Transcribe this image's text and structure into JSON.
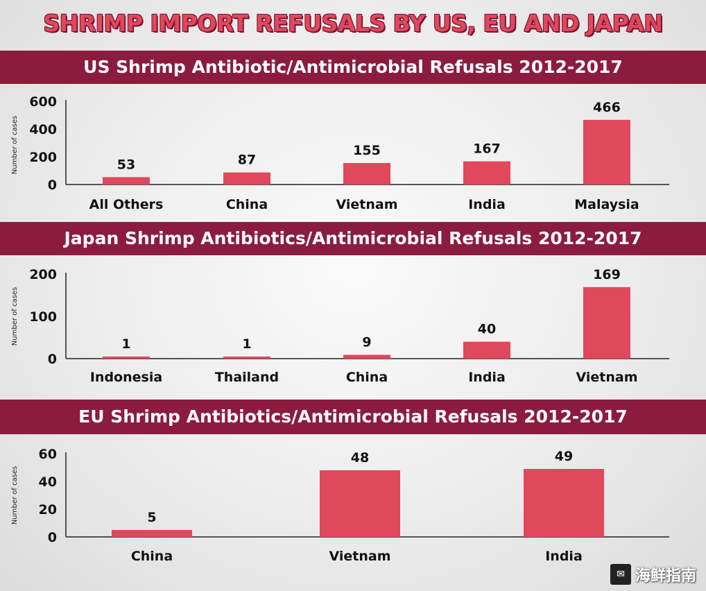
{
  "title": "SHRIMP IMPORT REFUSALS BY US, EU AND JAPAN",
  "ylabel": "Number of cases",
  "watermark": {
    "text": "海鲜指南",
    "logo_icon": "wechat-icon"
  },
  "colors": {
    "bar": "#e0485c",
    "band": "#8c1c3e",
    "title": "#e0485c"
  },
  "chart_data": [
    {
      "type": "bar",
      "title": "US Shrimp Antibiotic/Antimicrobial Refusals 2012-2017",
      "ylabel": "Number of cases",
      "categories": [
        "All Others",
        "China",
        "Vietnam",
        "India",
        "Malaysia"
      ],
      "values": [
        53,
        87,
        155,
        167,
        466
      ],
      "ylim": [
        0,
        600
      ],
      "yticks": [
        0,
        200,
        400,
        600
      ]
    },
    {
      "type": "bar",
      "title": "Japan Shrimp Antibiotics/Antimicrobial Refusals 2012-2017",
      "ylabel": "Number of cases",
      "categories": [
        "Indonesia",
        "Thailand",
        "China",
        "India",
        "Vietnam"
      ],
      "values": [
        1,
        1,
        9,
        40,
        169
      ],
      "ylim": [
        0,
        200
      ],
      "yticks": [
        0,
        100,
        200
      ]
    },
    {
      "type": "bar",
      "title": "EU Shrimp Antibiotics/Antimicrobial Refusals 2012-2017",
      "ylabel": "Number of cases",
      "categories": [
        "China",
        "Vietnam",
        "India"
      ],
      "values": [
        5,
        48,
        49
      ],
      "ylim": [
        0,
        60
      ],
      "yticks": [
        0,
        20,
        40,
        60
      ]
    }
  ]
}
